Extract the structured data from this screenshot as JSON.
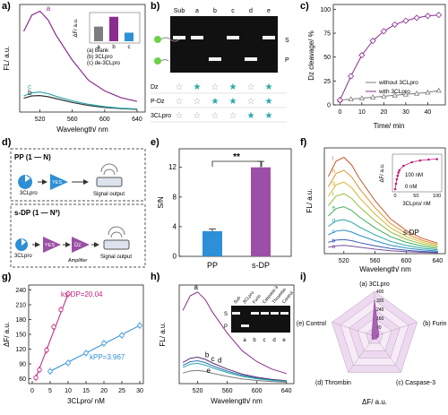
{
  "panels": {
    "a": "a)",
    "b": "b)",
    "c": "c)",
    "d": "d)",
    "e": "e)",
    "f": "f)",
    "g": "g)",
    "h": "h)",
    "i": "i)"
  },
  "colors": {
    "purple": "#8b2c8f",
    "teal": "#2aa7a8",
    "blue": "#2d8fd5",
    "gray": "#7d7d7d",
    "dark": "#333333",
    "pink": "#c21f7d",
    "radar_fill": "#eedaf0",
    "radar_data": "#9b4fa6"
  },
  "chart_data": [
    {
      "panel": "a",
      "type": "line",
      "xlabel": "Wavelength/ nm",
      "ylabel": "FL/ a.u.",
      "x_ticks": [
        "520",
        "560",
        "600",
        "640"
      ],
      "series": [
        {
          "name": "a",
          "color": "#8b2c8f",
          "x": [
            500,
            510,
            520,
            530,
            540,
            560,
            580,
            600,
            620,
            640
          ],
          "y": [
            420,
            505,
            525,
            480,
            400,
            270,
            165,
            110,
            75,
            55
          ]
        },
        {
          "name": "b",
          "color": "#333333",
          "x": [
            500,
            510,
            520,
            530,
            540,
            560,
            580,
            600,
            620,
            640
          ],
          "y": [
            72,
            84,
            86,
            80,
            70,
            50,
            34,
            24,
            18,
            14
          ]
        },
        {
          "name": "c",
          "color": "#2aa7a8",
          "x": [
            500,
            510,
            520,
            530,
            540,
            560,
            580,
            600,
            620,
            640
          ],
          "y": [
            84,
            100,
            104,
            96,
            82,
            58,
            40,
            28,
            20,
            16
          ]
        }
      ],
      "curve_labels": [
        "a",
        "b",
        "c"
      ],
      "inset": {
        "type": "bar",
        "ylabel": "ΔF/ a.u.",
        "categories": [
          "a",
          "b",
          "c"
        ],
        "values": [
          60,
          100,
          35
        ],
        "legend": [
          "(a) Blank",
          "(b) 3CLpro",
          "(c) de-3CLpro"
        ]
      }
    },
    {
      "panel": "c",
      "type": "line",
      "xlabel": "Time/ min",
      "ylabel": "Dz cleavage/ %",
      "x_ticks": [
        "0",
        "10",
        "20",
        "30",
        "40"
      ],
      "y_ticks": [
        "0",
        "25",
        "50",
        "75",
        "100"
      ],
      "series": [
        {
          "name": "without 3CLpro",
          "color": "#7d7d7d",
          "x": [
            0,
            5,
            10,
            15,
            20,
            25,
            30,
            35,
            40,
            45
          ],
          "y": [
            5,
            6,
            7,
            8,
            9,
            10,
            11,
            12,
            13,
            15
          ]
        },
        {
          "name": "with 3CLpro",
          "color": "#8b2c8f",
          "x": [
            0,
            5,
            10,
            15,
            20,
            25,
            30,
            35,
            40,
            45
          ],
          "y": [
            5,
            30,
            52,
            67,
            77,
            84,
            88,
            91,
            93,
            94
          ]
        }
      ]
    },
    {
      "panel": "e",
      "type": "bar",
      "ylabel": "S/N",
      "y_ticks": [
        "0",
        "4",
        "8",
        "12"
      ],
      "categories": [
        "PP",
        "s-DP"
      ],
      "values": [
        3.4,
        12.0
      ],
      "errors": [
        0.3,
        0.8
      ],
      "significance": "**"
    },
    {
      "panel": "f",
      "type": "line",
      "xlabel": "Wavelength/ nm",
      "ylabel": "FL/ a.u.",
      "x_ticks": [
        "520",
        "560",
        "600",
        "640"
      ],
      "annotation": "s-DP",
      "curve_labels": [
        "a",
        "b",
        "c",
        "d",
        "e",
        "f",
        "g",
        "h",
        "i"
      ],
      "peak_values": [
        35,
        60,
        100,
        145,
        200,
        255,
        305,
        355,
        410
      ],
      "inset": {
        "ylabel": "ΔF/ a.u.",
        "xlabel": "3CLpro/ nM",
        "x_ticks": [
          "0",
          "50",
          "100"
        ],
        "top_label": "100 nM",
        "bottom_label": "0 nM",
        "x": [
          0,
          2,
          4,
          6,
          8,
          10,
          20,
          40,
          60,
          80,
          100
        ],
        "y": [
          0,
          60,
          110,
          150,
          185,
          210,
          260,
          300,
          320,
          330,
          335
        ]
      }
    },
    {
      "panel": "g",
      "type": "scatter",
      "xlabel": "3CLpro/ nM",
      "ylabel": "ΔF/ a.u.",
      "x_ticks": [
        "0",
        "5",
        "10",
        "15",
        "20",
        "25",
        "30"
      ],
      "y_ticks": [
        "60",
        "90",
        "120",
        "150",
        "180",
        "210",
        "240"
      ],
      "series": [
        {
          "name": "s-DP",
          "color": "#c21f7d",
          "label": "ks-DP=20.04",
          "x": [
            1,
            2,
            4,
            6,
            8,
            10
          ],
          "y": [
            62,
            78,
            118,
            165,
            200,
            232
          ]
        },
        {
          "name": "PP",
          "color": "#2d8fd5",
          "label": "kPP=3.967",
          "x": [
            5,
            10,
            15,
            20,
            25,
            30
          ],
          "y": [
            75,
            92,
            112,
            132,
            148,
            168
          ]
        }
      ]
    },
    {
      "panel": "h",
      "type": "line",
      "xlabel": "Wavelength/ nm",
      "ylabel": "FL/ a.u.",
      "x_ticks": [
        "520",
        "560",
        "600",
        "640"
      ],
      "curve_labels": [
        "a",
        "b",
        "c",
        "d",
        "e"
      ],
      "gel_columns": [
        "Sub",
        "3CLpro",
        "Furin",
        "Caspase-3",
        "Thrombin",
        "Control"
      ],
      "gel_lane_labels": [
        "a",
        "b",
        "c",
        "d",
        "e"
      ],
      "gel_row_labels": [
        "S",
        "P"
      ]
    },
    {
      "panel": "i",
      "type": "radar",
      "axes": [
        "(a) 3CLpro",
        "(b) Furin",
        "(c) Caspase-3",
        "(d) Thrombin",
        "(e) Control"
      ],
      "ring_ticks": [
        "0",
        "80",
        "160",
        "240",
        "320",
        "400"
      ],
      "values": [
        320,
        40,
        30,
        35,
        25
      ],
      "xlabel": "ΔF/ a.u."
    }
  ],
  "panel_b": {
    "columns": [
      "Sub",
      "a",
      "b",
      "c",
      "d",
      "e"
    ],
    "gel_right_labels": [
      "S",
      "P"
    ],
    "row_labels": [
      "Dz",
      "P-Dz",
      "3CLpro"
    ],
    "rows": [
      [
        "empty",
        "filled",
        "empty",
        "filled",
        "empty",
        "filled"
      ],
      [
        "empty",
        "empty",
        "filled",
        "filled",
        "empty",
        "filled"
      ],
      [
        "empty",
        "empty",
        "empty",
        "empty",
        "filled",
        "filled"
      ]
    ]
  },
  "panel_d": {
    "pp_title": "PP (1 — N)",
    "sdp_title": "s-DP (1 — N²)",
    "enzyme": "3CLpro",
    "yes": "YES",
    "dz": "Dz",
    "amplifier": "Amplifier",
    "signal_output": "Signal output"
  }
}
